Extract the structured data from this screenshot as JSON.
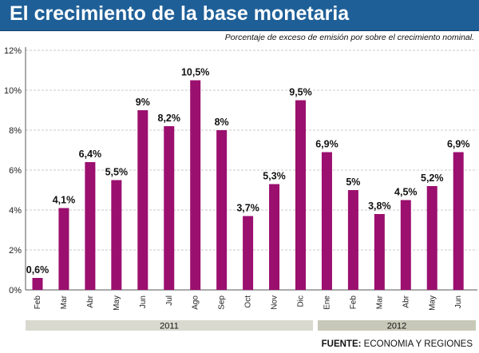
{
  "title": "El crecimiento de la base monetaria",
  "subtitle": "Porcentaje de exceso de emisión por sobre el crecimiento nominal.",
  "source": {
    "label": "FUENTE:",
    "text": "ECONOMIA Y REGIONES"
  },
  "colors": {
    "title_bg": "#1e5f97",
    "bar": "#9b0f6f",
    "year_band_2011": "#d9d9cf",
    "year_band_2012": "#c8c8b8"
  },
  "chart_data": {
    "type": "bar",
    "title": "El crecimiento de la base monetaria",
    "subtitle": "Porcentaje de exceso de emisión por sobre el crecimiento nominal.",
    "categories": [
      "Feb",
      "Mar",
      "Abr",
      "May",
      "Jun",
      "Jul",
      "Ago",
      "Sep",
      "Oct",
      "Nov",
      "Dic",
      "Ene",
      "Feb",
      "Mar",
      "Abr",
      "May",
      "Jun"
    ],
    "values": [
      0.6,
      4.1,
      6.4,
      5.5,
      9,
      8.2,
      10.5,
      8,
      3.7,
      5.3,
      9.5,
      6.9,
      5,
      3.8,
      4.5,
      5.2,
      6.9
    ],
    "data_labels": [
      "0,6%",
      "4,1%",
      "6,4%",
      "5,5%",
      "9%",
      "8,2%",
      "10,5%",
      "8%",
      "3,7%",
      "5,3%",
      "9,5%",
      "6,9%",
      "5%",
      "3,8%",
      "4,5%",
      "5,2%",
      "6,9%"
    ],
    "yticks": [
      0,
      2,
      4,
      6,
      8,
      10,
      12
    ],
    "ytick_labels": [
      "0%",
      "2%",
      "4%",
      "6%",
      "8%",
      "10%",
      "12%"
    ],
    "ylim": [
      0,
      12
    ],
    "grid": true,
    "groups": [
      {
        "label": "2011",
        "start": 0,
        "end": 10
      },
      {
        "label": "2012",
        "start": 11,
        "end": 16
      }
    ]
  }
}
